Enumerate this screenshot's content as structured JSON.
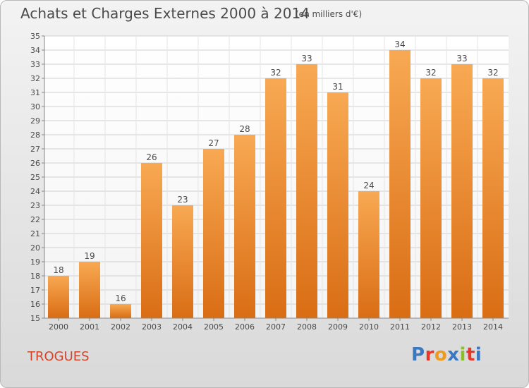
{
  "header": {
    "title": "Achats et Charges Externes 2000 à 2014",
    "subtitle": "(en milliers d'€)"
  },
  "footer": {
    "town": "TROGUES",
    "logo": {
      "letters": [
        "P",
        "r",
        "o",
        "x",
        "i",
        "t",
        "i"
      ],
      "colors": [
        "#3a78c2",
        "#e5382a",
        "#f09a1d",
        "#3a78c2",
        "#8cbe2a",
        "#e5382a",
        "#3a78c2"
      ]
    }
  },
  "colors": {
    "bar_top": "#f8a953",
    "bar_bottom": "#d96d14",
    "grid": "#d0d0d0",
    "axis_text": "#4a4a4a"
  },
  "chart_data": {
    "type": "bar",
    "categories": [
      "2000",
      "2001",
      "2002",
      "2003",
      "2004",
      "2005",
      "2006",
      "2007",
      "2008",
      "2009",
      "2010",
      "2011",
      "2012",
      "2013",
      "2014"
    ],
    "values": [
      18,
      19,
      16,
      26,
      23,
      27,
      28,
      32,
      33,
      31,
      24,
      34,
      32,
      33,
      32
    ],
    "title": "Achats et Charges Externes 2000 à 2014",
    "xlabel": "",
    "ylabel": "",
    "ylim": [
      15,
      35
    ],
    "yticks": [
      15,
      16,
      17,
      18,
      19,
      20,
      21,
      22,
      23,
      24,
      25,
      26,
      27,
      28,
      29,
      30,
      31,
      32,
      33,
      34,
      35
    ],
    "grid": true,
    "data_labels": true
  }
}
